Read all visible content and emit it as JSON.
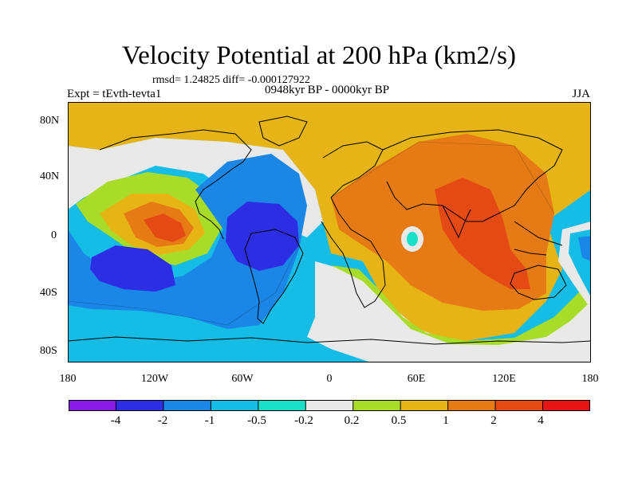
{
  "title": "Velocity Potential at 200 hPa (km2/s)",
  "stats": "rmsd= 1.24825 diff= -0.000127922",
  "experiment": "Expt = tEvth-tevta1",
  "period": "0948kyr BP - 0000kyr BP",
  "season": "JJA",
  "lat_labels": [
    "80N",
    "40N",
    "0",
    "40S",
    "80S"
  ],
  "lon_labels": [
    "180",
    "120W",
    "60W",
    "0",
    "60E",
    "120E",
    "180"
  ],
  "colorbar": {
    "labels": [
      "-4",
      "-2",
      "-1",
      "-0.5",
      "-0.2",
      "0.2",
      "0.5",
      "1",
      "2",
      "4"
    ],
    "colors": [
      "#8a1ae6",
      "#2d2ee3",
      "#1a86e6",
      "#14bce6",
      "#1ae0c8",
      "#e9e9e9",
      "#a8dc28",
      "#e6b414",
      "#e67a14",
      "#e64a14",
      "#e61414"
    ]
  },
  "palette": {
    "ocean_bg": "#14bce6",
    "negative_mid": "#1a86e6",
    "negative_strong": "#2d2ee3",
    "near_zero": "#e9e9e9",
    "weak_negative": "#1ae0c8",
    "weak_positive": "#a8dc28",
    "positive": "#e6b414",
    "positive_mid": "#e67a14",
    "positive_strong": "#e64a14"
  }
}
